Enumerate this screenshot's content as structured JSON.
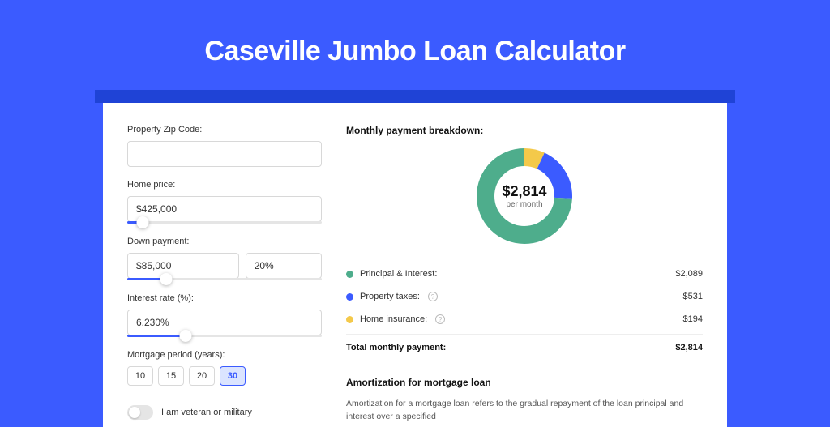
{
  "title": "Caseville Jumbo Loan Calculator",
  "colors": {
    "page_bg": "#3b5bff",
    "shadow": "#1f43d6",
    "card_bg": "#ffffff",
    "principal": "#4ead8c",
    "taxes": "#3b5bff",
    "insurance": "#f4c94a"
  },
  "form": {
    "zip": {
      "label": "Property Zip Code:",
      "value": ""
    },
    "home_price": {
      "label": "Home price:",
      "value": "$425,000",
      "slider_pct": 8
    },
    "down_payment": {
      "label": "Down payment:",
      "amount": "$85,000",
      "percent": "20%",
      "slider_pct": 20
    },
    "interest_rate": {
      "label": "Interest rate (%):",
      "value": "6.230%",
      "slider_pct": 30
    },
    "mortgage_period": {
      "label": "Mortgage period (years):",
      "options": [
        "10",
        "15",
        "20",
        "30"
      ],
      "active": "30"
    },
    "veteran": {
      "label": "I am veteran or military",
      "checked": false
    }
  },
  "breakdown": {
    "title": "Monthly payment breakdown:",
    "center_amount": "$2,814",
    "center_sub": "per month",
    "donut": {
      "radius": 48,
      "stroke": 22,
      "segments": [
        {
          "key": "insurance",
          "value": 194,
          "color": "#f4c94a"
        },
        {
          "key": "taxes",
          "value": 531,
          "color": "#3b5bff"
        },
        {
          "key": "principal",
          "value": 2089,
          "color": "#4ead8c"
        }
      ]
    },
    "items": [
      {
        "label": "Principal & Interest:",
        "dot": "#4ead8c",
        "help": false,
        "value": "$2,089"
      },
      {
        "label": "Property taxes:",
        "dot": "#3b5bff",
        "help": true,
        "value": "$531"
      },
      {
        "label": "Home insurance:",
        "dot": "#f4c94a",
        "help": true,
        "value": "$194"
      }
    ],
    "total_label": "Total monthly payment:",
    "total_value": "$2,814"
  },
  "amortization": {
    "title": "Amortization for mortgage loan",
    "text": "Amortization for a mortgage loan refers to the gradual repayment of the loan principal and interest over a specified"
  }
}
